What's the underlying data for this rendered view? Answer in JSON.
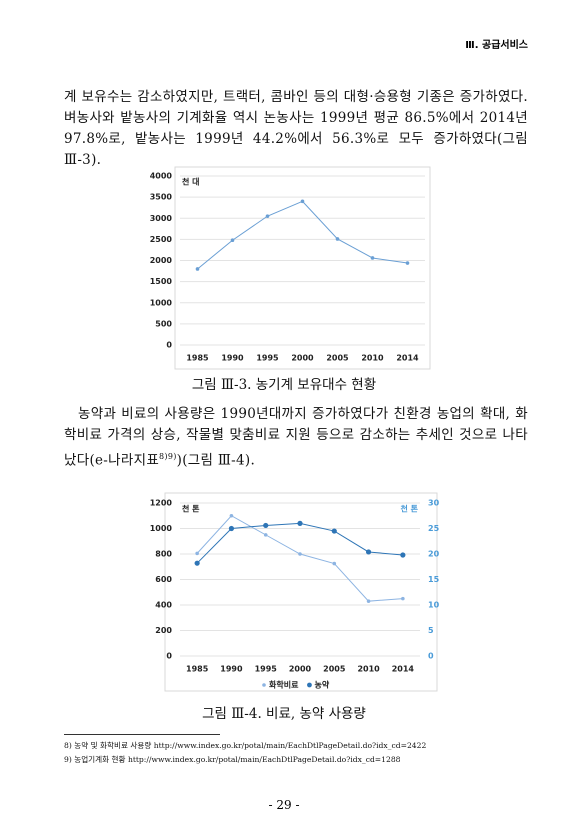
{
  "header": "Ⅲ. 공급서비스",
  "paragraph1": "계 보유수는 감소하였지만, 트랙터, 콤바인 등의 대형·승용형 기종은 증가하였다. 벼농사와 밭농사의 기계화율 역시 논농사는 1999년 평균 86.5%에서 2014년 97.8%로, 밭농사는 1999년 44.2%에서 56.3%로 모두 증가하였다(그림 Ⅲ-3).",
  "caption1": "그림 Ⅲ-3. 농기계 보유대수 현황",
  "paragraph2": {
    "text": "농약과 비료의 사용량은 1990년대까지 증가하였다가 친환경 농업의 확대, 화학비료 가격의 상승, 작물별 맞춤비료 지원 등으로 감소하는 추세인 것으로 나타났다(e-나라지표",
    "sup": "8)9)",
    "end": ")(그림 Ⅲ-4)."
  },
  "caption2": "그림 Ⅲ-4. 비료, 농약 사용량",
  "footnotes": [
    "8) 농약 및 화학비료 사용량 http://www.index.go.kr/potal/main/EachDtlPageDetail.do?idx_cd=2422",
    "9) 농업기계화 현황 http://www.index.go.kr/potal/main/EachDtlPageDetail.do?idx_cd=1288"
  ],
  "page_number": "- 29 -",
  "chart_data": [
    {
      "type": "line",
      "y_unit": "천 대",
      "categories": [
        "1985",
        "1990",
        "1995",
        "2000",
        "2005",
        "2010",
        "2014"
      ],
      "series": [
        {
          "color": "#6a9fd4",
          "values": [
            1800,
            2480,
            3050,
            3400,
            2510,
            2060,
            1940
          ]
        }
      ],
      "ylim": [
        0,
        4000
      ],
      "yticks": [
        0,
        500,
        1000,
        1500,
        2000,
        2500,
        3000,
        3500,
        4000
      ],
      "grid": true
    },
    {
      "type": "line",
      "y_unit": "천 톤",
      "y2_unit": "천 톤",
      "categories": [
        "1985",
        "1990",
        "1995",
        "2000",
        "2005",
        "2010",
        "2014"
      ],
      "series": [
        {
          "name": "화학비료",
          "color": "#8db4e2",
          "values": [
            805,
            1100,
            950,
            800,
            725,
            430,
            450
          ]
        },
        {
          "name": "농약",
          "color": "#2e75b6",
          "axis": "y2",
          "values": [
            18.2,
            25,
            25.6,
            26,
            24.5,
            20.4,
            19.8
          ]
        }
      ],
      "ylim": [
        0,
        1200
      ],
      "yticks": [
        0,
        200,
        400,
        600,
        800,
        1000,
        1200
      ],
      "y2lim": [
        0,
        30
      ],
      "y2ticks": [
        0,
        5,
        10,
        15,
        20,
        25,
        30
      ],
      "grid": true,
      "legend": "bottom"
    }
  ]
}
